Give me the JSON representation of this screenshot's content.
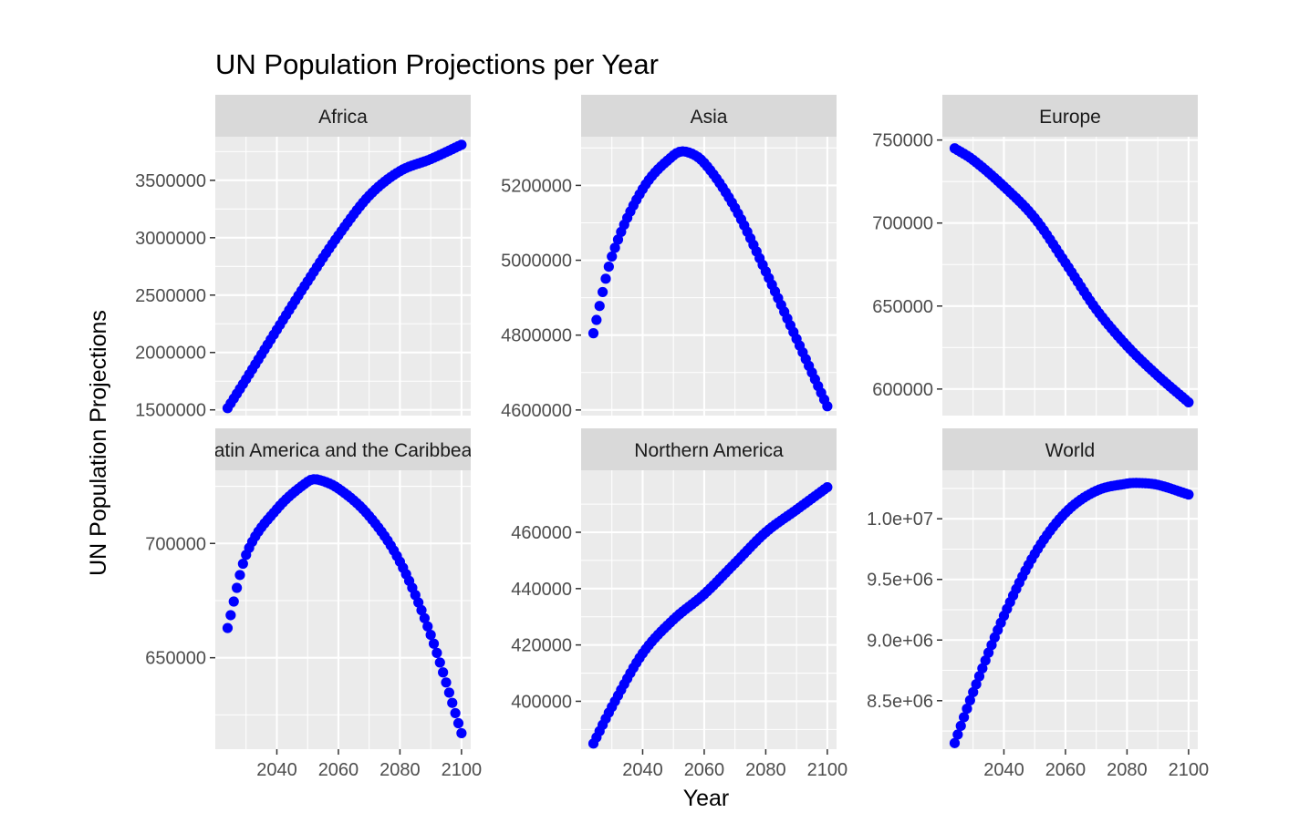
{
  "chart_data": {
    "type": "scatter",
    "title": "UN Population Projections per Year",
    "xlabel": "Year",
    "ylabel": "UN Population Projections",
    "point_color": "#0000ff",
    "panel_background": "#ebebeb",
    "strip_background": "#d9d9d9",
    "x_ticks": [
      2040,
      2060,
      2080,
      2100
    ],
    "x_range": [
      2020,
      2103
    ],
    "facets": [
      {
        "name": "Africa",
        "strip_label": "Africa",
        "y_range": [
          1450000,
          3880000
        ],
        "y_ticks": [
          1500000,
          2000000,
          2500000,
          3000000,
          3500000
        ],
        "y_tick_labels": [
          "1500000",
          "2000000",
          "2500000",
          "3000000",
          "3500000"
        ],
        "points": [
          [
            2024,
            1515000
          ],
          [
            2030,
            1767000
          ],
          [
            2040,
            2198000
          ],
          [
            2050,
            2620000
          ],
          [
            2060,
            3020000
          ],
          [
            2070,
            3366000
          ],
          [
            2080,
            3580000
          ],
          [
            2090,
            3685000
          ],
          [
            2100,
            3810000
          ]
        ]
      },
      {
        "name": "Asia",
        "strip_label": "Asia",
        "y_range": [
          4585000,
          5330000
        ],
        "y_ticks": [
          4600000,
          4800000,
          5000000,
          5200000
        ],
        "y_tick_labels": [
          "4600000",
          "4800000",
          "5000000",
          "5200000"
        ],
        "points": [
          [
            2024,
            4805000
          ],
          [
            2030,
            5010000
          ],
          [
            2040,
            5190000
          ],
          [
            2050,
            5280000
          ],
          [
            2054,
            5290000
          ],
          [
            2060,
            5260000
          ],
          [
            2070,
            5140000
          ],
          [
            2080,
            4970000
          ],
          [
            2090,
            4790000
          ],
          [
            2100,
            4610000
          ]
        ]
      },
      {
        "name": "Europe",
        "strip_label": "Europe",
        "y_range": [
          584000,
          752000
        ],
        "y_ticks": [
          600000,
          650000,
          700000,
          750000
        ],
        "y_tick_labels": [
          "600000",
          "650000",
          "700000",
          "750000"
        ],
        "points": [
          [
            2024,
            745000
          ],
          [
            2030,
            738000
          ],
          [
            2040,
            722000
          ],
          [
            2050,
            703000
          ],
          [
            2060,
            676000
          ],
          [
            2070,
            648000
          ],
          [
            2080,
            626000
          ],
          [
            2090,
            608000
          ],
          [
            2100,
            592000
          ]
        ]
      },
      {
        "name": "Latin America and the Caribbean",
        "strip_label": "Latin America and the Caribbean",
        "y_range": [
          610000,
          732000
        ],
        "y_ticks": [
          650000,
          700000
        ],
        "y_tick_labels": [
          "650000",
          "700000"
        ],
        "points": [
          [
            2024,
            663000
          ],
          [
            2030,
            695000
          ],
          [
            2040,
            715000
          ],
          [
            2050,
            727000
          ],
          [
            2053,
            728000
          ],
          [
            2060,
            724000
          ],
          [
            2070,
            712000
          ],
          [
            2080,
            692000
          ],
          [
            2090,
            660000
          ],
          [
            2100,
            617000
          ]
        ]
      },
      {
        "name": "Northern America",
        "strip_label": "Northern America",
        "y_range": [
          383000,
          482000
        ],
        "y_ticks": [
          400000,
          420000,
          440000,
          460000
        ],
        "y_tick_labels": [
          "400000",
          "420000",
          "440000",
          "460000"
        ],
        "points": [
          [
            2024,
            385000
          ],
          [
            2030,
            398000
          ],
          [
            2040,
            417000
          ],
          [
            2050,
            429000
          ],
          [
            2060,
            438000
          ],
          [
            2070,
            449000
          ],
          [
            2080,
            460000
          ],
          [
            2090,
            468000
          ],
          [
            2100,
            476000
          ]
        ]
      },
      {
        "name": "World",
        "strip_label": "World",
        "y_range": [
          8100000,
          10400000
        ],
        "y_ticks": [
          8500000,
          9000000,
          9500000,
          10000000
        ],
        "y_tick_labels": [
          "8.5e+06",
          "9.0e+06",
          "9.5e+06",
          "1.0e+07"
        ],
        "points": [
          [
            2024,
            8150000
          ],
          [
            2030,
            8570000
          ],
          [
            2040,
            9200000
          ],
          [
            2050,
            9710000
          ],
          [
            2060,
            10050000
          ],
          [
            2070,
            10230000
          ],
          [
            2080,
            10290000
          ],
          [
            2084,
            10295000
          ],
          [
            2090,
            10280000
          ],
          [
            2100,
            10200000
          ]
        ]
      }
    ]
  }
}
